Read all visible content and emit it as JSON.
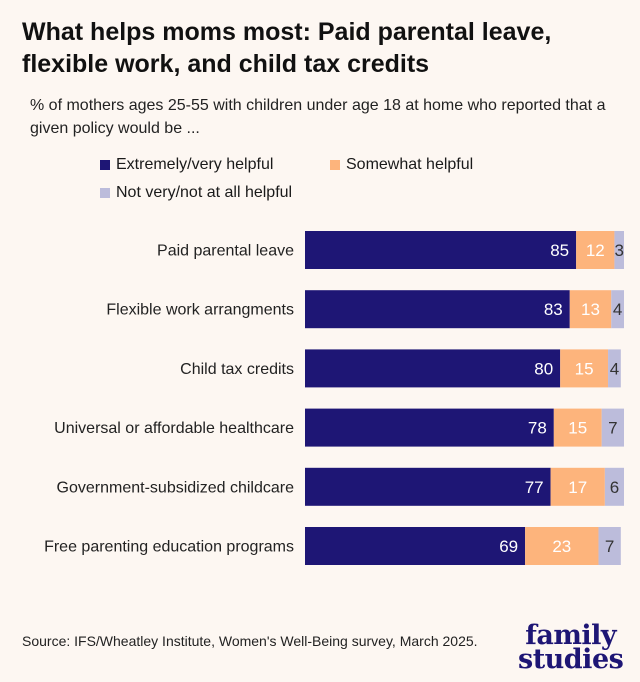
{
  "title": "What helps moms most: Paid parental leave, flexible work, and child tax credits",
  "subtitle": "% of mothers ages 25-55 with children under age 18 at home who reported that a given policy would be ...",
  "source": "Source: IFS/Wheatley Institute, Women's Well-Being survey, March 2025.",
  "logo": "family studies",
  "chart_data": {
    "type": "bar",
    "orientation": "horizontal",
    "stacked": true,
    "xlim": [
      0,
      100
    ],
    "grid": false,
    "legend_position": "top",
    "categories": [
      "Paid parental leave",
      "Flexible work arrangments",
      "Child tax credits",
      "Universal or affordable healthcare",
      "Government-subsidized childcare",
      "Free parenting education programs"
    ],
    "series": [
      {
        "name": "Extremely/very helpful",
        "color": "#1e1675",
        "label_color": "#ffffff",
        "values": [
          85,
          83,
          80,
          78,
          77,
          69
        ]
      },
      {
        "name": "Somewhat helpful",
        "color": "#fdb47c",
        "label_color": "#ffffff",
        "values": [
          12,
          13,
          15,
          15,
          17,
          23
        ]
      },
      {
        "name": "Not very/not at all helpful",
        "color": "#bcbcdb",
        "label_color": "#333333",
        "values": [
          3,
          4,
          4,
          7,
          6,
          7
        ]
      }
    ]
  }
}
